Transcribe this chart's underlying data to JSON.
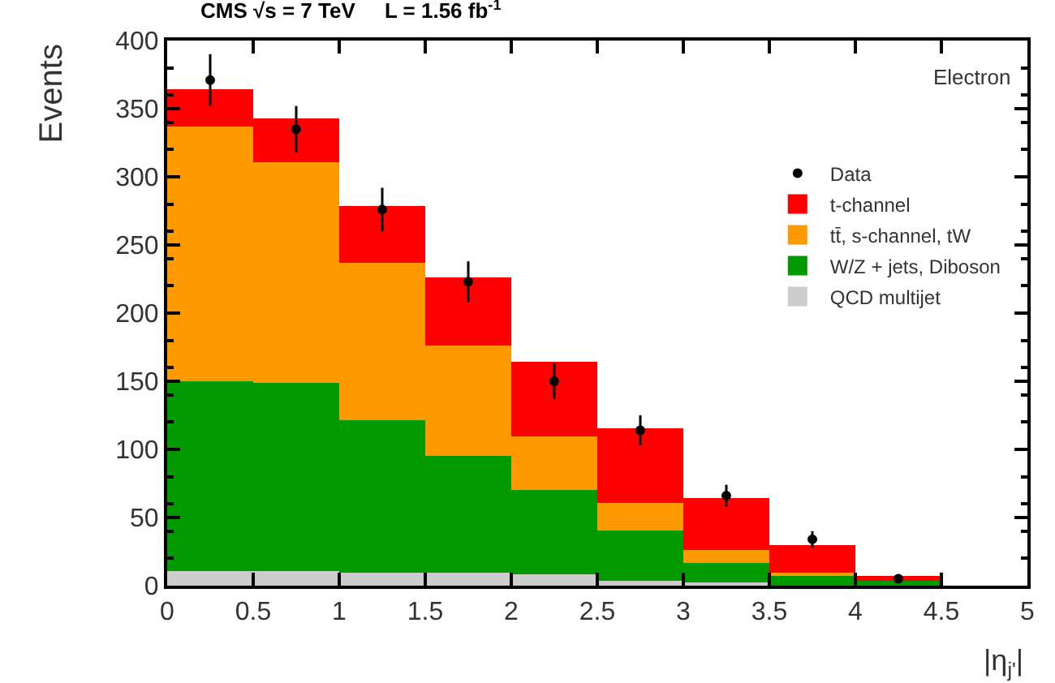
{
  "chart_data": {
    "type": "bar",
    "title": "CMS √s = 7 TeV     L = 1.56 fb$^{-1}$",
    "xlabel": "|η$_{j'}$|",
    "ylabel": "Events",
    "annotations": [
      "Electron"
    ],
    "x": [
      0.25,
      0.75,
      1.25,
      1.75,
      2.25,
      2.75,
      3.25,
      3.75,
      4.25
    ],
    "stacked": true,
    "series": [
      {
        "name": "QCD multijet",
        "color": "#cccccc",
        "values": [
          11,
          11,
          10,
          9,
          8,
          3,
          2,
          null,
          null
        ]
      },
      {
        "name": "W/Z + jets, Diboson",
        "color": "#009900",
        "values": [
          139,
          138,
          112,
          86,
          62,
          37,
          15,
          8,
          3
        ]
      },
      {
        "name": "tt̄, s-channel, tW",
        "color": "#ff9900",
        "values": [
          187,
          162,
          115,
          81,
          40,
          21,
          9,
          2,
          null
        ]
      },
      {
        "name": "t-channel",
        "color": "#ff0000",
        "values": [
          27,
          32,
          41,
          50,
          54,
          55,
          38,
          20,
          4
        ]
      },
      {
        "name": "Data",
        "type": "scatter",
        "color": "#000000",
        "values": [
          371,
          335,
          276,
          223,
          150,
          114,
          66,
          34,
          5
        ],
        "errors": [
          19,
          17,
          16,
          15,
          13,
          11,
          8,
          6,
          2
        ]
      }
    ],
    "xlim": [
      0,
      5
    ],
    "ylim": [
      0,
      400
    ],
    "xticks": [
      0,
      0.5,
      1,
      1.5,
      2,
      2.5,
      3,
      3.5,
      4,
      4.5,
      5
    ],
    "yticks": [
      0,
      50,
      100,
      150,
      200,
      250,
      300,
      350,
      400
    ],
    "legend": "top right",
    "marker": "circle"
  }
}
